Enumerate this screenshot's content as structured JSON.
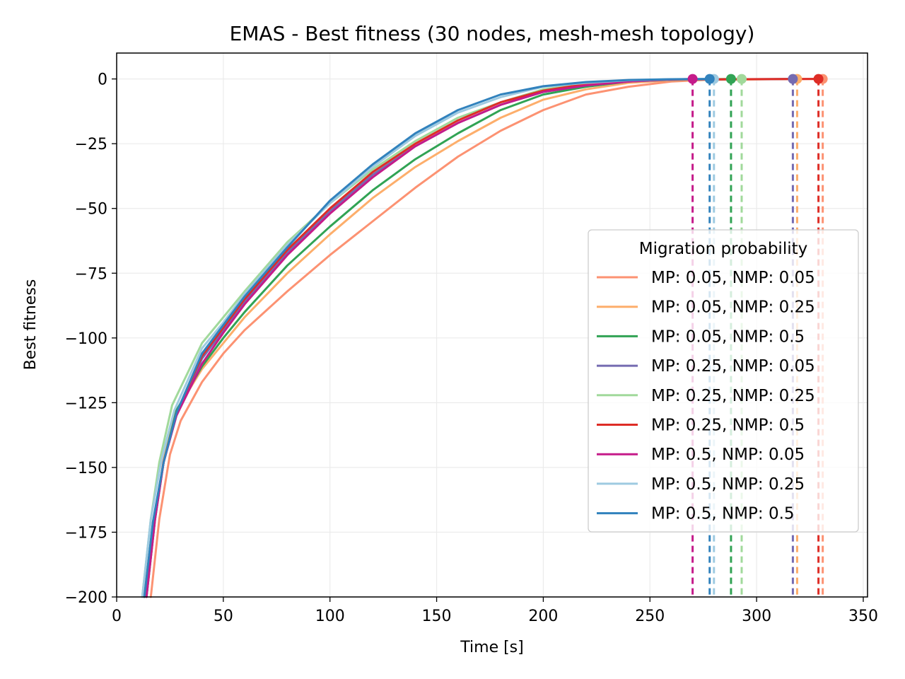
{
  "chart_data": {
    "type": "line",
    "title": "EMAS - Best fitness (30 nodes, mesh-mesh topology)",
    "xlabel": "Time [s]",
    "ylabel": "Best fitness",
    "xlim": [
      0,
      352
    ],
    "ylim": [
      -200,
      10
    ],
    "xticks": [
      0,
      50,
      100,
      150,
      200,
      250,
      300,
      350
    ],
    "yticks": [
      0,
      -25,
      -50,
      -75,
      -100,
      -125,
      -150,
      -175,
      -200
    ],
    "xtick_labels": [
      "0",
      "50",
      "100",
      "150",
      "200",
      "250",
      "300",
      "350"
    ],
    "ytick_labels": [
      "0",
      "−25",
      "−50",
      "−75",
      "−100",
      "−125",
      "−150",
      "−175",
      "−200"
    ],
    "grid": true,
    "legend": {
      "title": "Migration probability",
      "placement": "center-right"
    },
    "series": [
      {
        "name": "MP: 0.05, NMP: 0.05",
        "color": "#fc9272",
        "end_time": 331,
        "points": [
          [
            16,
            -200
          ],
          [
            20,
            -170
          ],
          [
            25,
            -145
          ],
          [
            30,
            -132
          ],
          [
            40,
            -117
          ],
          [
            50,
            -106
          ],
          [
            60,
            -97
          ],
          [
            80,
            -82
          ],
          [
            100,
            -68
          ],
          [
            120,
            -55
          ],
          [
            140,
            -42
          ],
          [
            160,
            -30
          ],
          [
            180,
            -20
          ],
          [
            200,
            -12
          ],
          [
            220,
            -6
          ],
          [
            240,
            -3
          ],
          [
            260,
            -1
          ],
          [
            280,
            -0.2
          ],
          [
            331,
            0
          ]
        ]
      },
      {
        "name": "MP: 0.05, NMP: 0.25",
        "color": "#fdae6b",
        "end_time": 319,
        "points": [
          [
            14,
            -200
          ],
          [
            18,
            -170
          ],
          [
            22,
            -147
          ],
          [
            28,
            -128
          ],
          [
            40,
            -112
          ],
          [
            50,
            -102
          ],
          [
            60,
            -92
          ],
          [
            80,
            -75
          ],
          [
            100,
            -60
          ],
          [
            120,
            -46
          ],
          [
            140,
            -34
          ],
          [
            160,
            -24
          ],
          [
            180,
            -15
          ],
          [
            200,
            -8
          ],
          [
            220,
            -4
          ],
          [
            240,
            -1.5
          ],
          [
            260,
            -0.5
          ],
          [
            319,
            0
          ]
        ]
      },
      {
        "name": "MP: 0.05, NMP: 0.5",
        "color": "#31a354",
        "end_time": 288,
        "points": [
          [
            14,
            -200
          ],
          [
            18,
            -170
          ],
          [
            22,
            -148
          ],
          [
            28,
            -128
          ],
          [
            40,
            -111
          ],
          [
            50,
            -100
          ],
          [
            60,
            -90
          ],
          [
            80,
            -72
          ],
          [
            100,
            -57
          ],
          [
            120,
            -43
          ],
          [
            140,
            -31
          ],
          [
            160,
            -21
          ],
          [
            180,
            -12
          ],
          [
            200,
            -6
          ],
          [
            220,
            -3
          ],
          [
            240,
            -1
          ],
          [
            260,
            -0.3
          ],
          [
            288,
            0
          ]
        ]
      },
      {
        "name": "MP: 0.25, NMP: 0.05",
        "color": "#756bb1",
        "end_time": 317,
        "points": [
          [
            13,
            -200
          ],
          [
            17,
            -172
          ],
          [
            22,
            -148
          ],
          [
            28,
            -130
          ],
          [
            40,
            -108
          ],
          [
            50,
            -97
          ],
          [
            60,
            -86
          ],
          [
            80,
            -67
          ],
          [
            100,
            -51
          ],
          [
            120,
            -37
          ],
          [
            140,
            -26
          ],
          [
            160,
            -17
          ],
          [
            180,
            -10
          ],
          [
            200,
            -5
          ],
          [
            220,
            -2.5
          ],
          [
            240,
            -1
          ],
          [
            260,
            -0.3
          ],
          [
            317,
            0
          ]
        ]
      },
      {
        "name": "MP: 0.25, NMP: 0.25",
        "color": "#a1d99b",
        "end_time": 293,
        "points": [
          [
            12,
            -200
          ],
          [
            16,
            -170
          ],
          [
            20,
            -148
          ],
          [
            26,
            -126
          ],
          [
            40,
            -102
          ],
          [
            50,
            -92
          ],
          [
            60,
            -82
          ],
          [
            80,
            -63
          ],
          [
            100,
            -48
          ],
          [
            120,
            -35
          ],
          [
            140,
            -24
          ],
          [
            160,
            -15
          ],
          [
            180,
            -9
          ],
          [
            200,
            -4
          ],
          [
            220,
            -2
          ],
          [
            240,
            -0.8
          ],
          [
            260,
            -0.2
          ],
          [
            293,
            0
          ]
        ]
      },
      {
        "name": "MP: 0.25, NMP: 0.5",
        "color": "#de2d26",
        "end_time": 329,
        "points": [
          [
            13,
            -200
          ],
          [
            17,
            -172
          ],
          [
            22,
            -148
          ],
          [
            28,
            -129
          ],
          [
            40,
            -107
          ],
          [
            50,
            -96
          ],
          [
            60,
            -85
          ],
          [
            80,
            -66
          ],
          [
            100,
            -50
          ],
          [
            120,
            -36
          ],
          [
            140,
            -25
          ],
          [
            160,
            -16
          ],
          [
            180,
            -9
          ],
          [
            200,
            -4.5
          ],
          [
            220,
            -2
          ],
          [
            240,
            -0.8
          ],
          [
            260,
            -0.2
          ],
          [
            329,
            0
          ]
        ]
      },
      {
        "name": "MP: 0.5, NMP: 0.05",
        "color": "#c51b8a",
        "end_time": 270,
        "points": [
          [
            14,
            -200
          ],
          [
            18,
            -170
          ],
          [
            22,
            -148
          ],
          [
            28,
            -130
          ],
          [
            40,
            -110
          ],
          [
            50,
            -98
          ],
          [
            60,
            -87
          ],
          [
            80,
            -68
          ],
          [
            100,
            -52
          ],
          [
            120,
            -38
          ],
          [
            140,
            -26
          ],
          [
            160,
            -17
          ],
          [
            180,
            -10
          ],
          [
            200,
            -5
          ],
          [
            220,
            -2.5
          ],
          [
            240,
            -1
          ],
          [
            255,
            -0.3
          ],
          [
            270,
            0
          ]
        ]
      },
      {
        "name": "MP: 0.5, NMP: 0.25",
        "color": "#9ecae1",
        "end_time": 280,
        "points": [
          [
            12,
            -200
          ],
          [
            16,
            -170
          ],
          [
            21,
            -147
          ],
          [
            27,
            -128
          ],
          [
            40,
            -104
          ],
          [
            50,
            -94
          ],
          [
            60,
            -83
          ],
          [
            80,
            -64
          ],
          [
            100,
            -48
          ],
          [
            120,
            -34
          ],
          [
            140,
            -22
          ],
          [
            160,
            -13
          ],
          [
            180,
            -7
          ],
          [
            200,
            -3
          ],
          [
            220,
            -1.5
          ],
          [
            240,
            -0.5
          ],
          [
            260,
            -0.1
          ],
          [
            280,
            0
          ]
        ]
      },
      {
        "name": "MP: 0.5, NMP: 0.5",
        "color": "#3182bd",
        "end_time": 278,
        "points": [
          [
            13,
            -200
          ],
          [
            17,
            -171
          ],
          [
            22,
            -148
          ],
          [
            28,
            -129
          ],
          [
            40,
            -106
          ],
          [
            50,
            -95
          ],
          [
            60,
            -84
          ],
          [
            80,
            -65
          ],
          [
            100,
            -47
          ],
          [
            120,
            -33
          ],
          [
            140,
            -21
          ],
          [
            160,
            -12
          ],
          [
            180,
            -6
          ],
          [
            200,
            -2.8
          ],
          [
            220,
            -1.2
          ],
          [
            240,
            -0.4
          ],
          [
            260,
            -0.1
          ],
          [
            278,
            0
          ]
        ]
      }
    ]
  }
}
